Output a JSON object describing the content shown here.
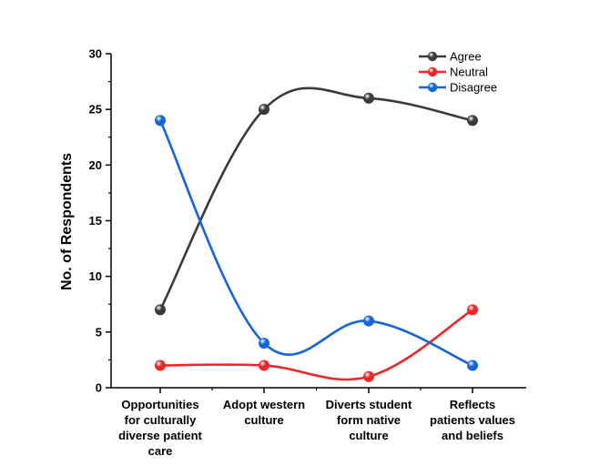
{
  "chart_data": {
    "type": "line",
    "title": "",
    "xlabel": "",
    "ylabel": "No. of Respondents",
    "ylim": [
      0,
      30
    ],
    "yticks": [
      "0",
      "5",
      "10",
      "15",
      "20",
      "25",
      "30"
    ],
    "categories": [
      [
        "Opportunities",
        "for culturally",
        "diverse patient",
        "care"
      ],
      [
        "Adopt western",
        "culture"
      ],
      [
        "Diverts student",
        "form native",
        "culture"
      ],
      [
        "Reflects",
        "patients values",
        "and beliefs"
      ]
    ],
    "series": [
      {
        "name": "Agree",
        "values": [
          7,
          25,
          26,
          24
        ],
        "color": "#3a3a3a"
      },
      {
        "name": "Neutral",
        "values": [
          2,
          2,
          1,
          7
        ],
        "color": "#e8282b"
      },
      {
        "name": "Disagree",
        "values": [
          24,
          4,
          6,
          2
        ],
        "color": "#1565d8"
      }
    ],
    "legend_position": "top-right",
    "grid": false,
    "smooth": true,
    "marker": "sphere"
  }
}
